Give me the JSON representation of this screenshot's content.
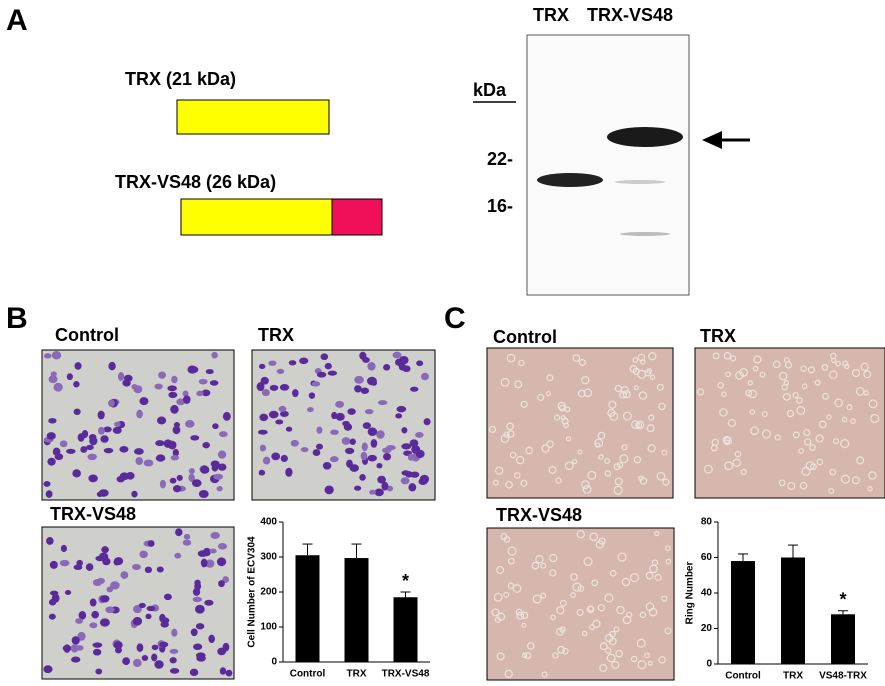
{
  "panel_a": {
    "letter": "A",
    "constructs": [
      {
        "label": "TRX (21 kDa)"
      },
      {
        "label": "TRX-VS48 (26 kDa)"
      }
    ],
    "blot": {
      "lanes": [
        "TRX",
        "TRX-VS48"
      ],
      "unit": "kDa",
      "markers": [
        "22-",
        "16-"
      ]
    }
  },
  "panel_b": {
    "letter": "B",
    "images": [
      "Control",
      "TRX",
      "TRX-VS48"
    ]
  },
  "panel_c": {
    "letter": "C",
    "images": [
      "Control",
      "TRX",
      "TRX-VS48"
    ]
  },
  "chart_data": [
    {
      "type": "bar",
      "ylabel": "Cell Number of ECV304",
      "categories": [
        "Control",
        "TRX",
        "TRX-VS48"
      ],
      "values": [
        305,
        297,
        185
      ],
      "errors": [
        32,
        40,
        15
      ],
      "color": "#000000",
      "ylim": [
        0,
        400
      ],
      "yticks": [
        0,
        100,
        200,
        300,
        400
      ],
      "annotations": [
        {
          "index": 2,
          "text": "*"
        }
      ]
    },
    {
      "type": "bar",
      "ylabel": "Ring Number",
      "categories": [
        "Control",
        "TRX",
        "VS48-TRX"
      ],
      "values": [
        58,
        60,
        28
      ],
      "errors": [
        4,
        7,
        2
      ],
      "color": "#000000",
      "ylim": [
        0,
        80
      ],
      "yticks": [
        0,
        20,
        40,
        60,
        80
      ],
      "annotations": [
        {
          "index": 2,
          "text": "*"
        }
      ]
    }
  ]
}
